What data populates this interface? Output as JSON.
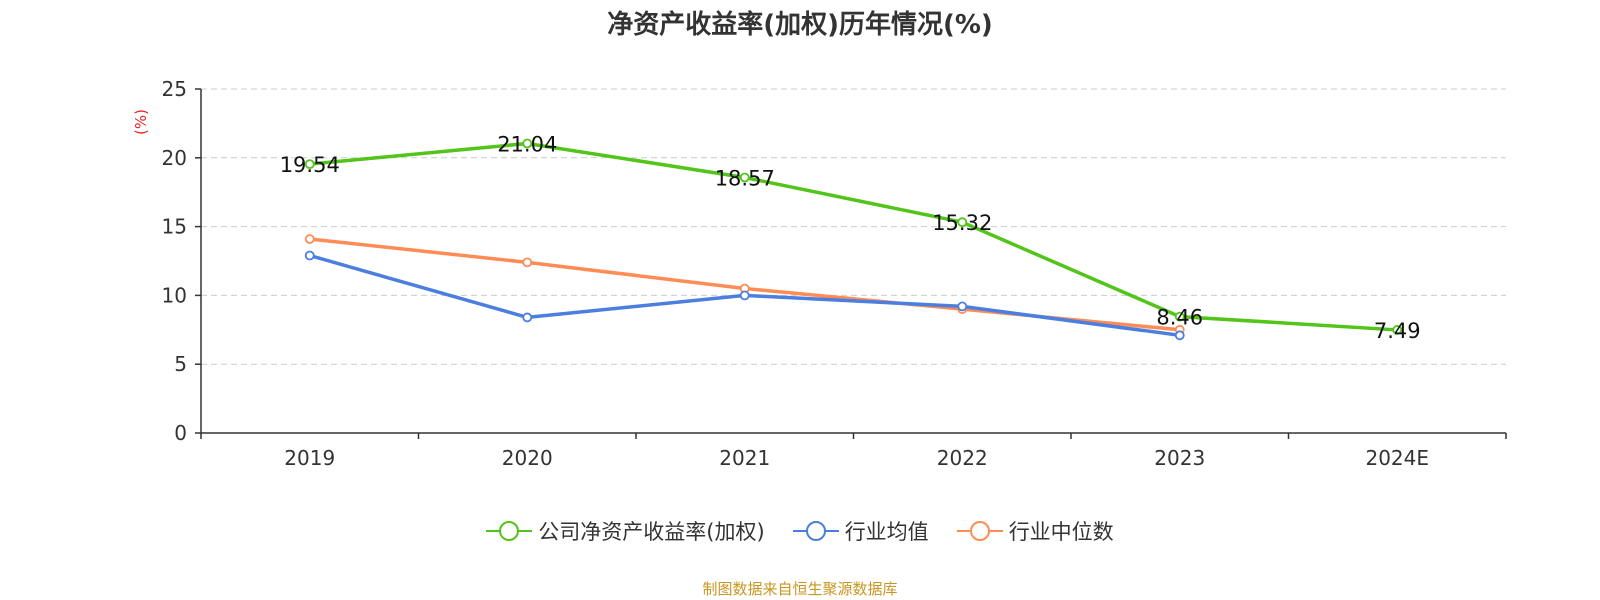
{
  "chart_data": {
    "type": "line",
    "title": "净资产收益率(加权)历年情况(%)",
    "ylabel": "(%)",
    "xlabel": "",
    "categories": [
      "2019",
      "2020",
      "2021",
      "2022",
      "2023",
      "2024E"
    ],
    "ylim": [
      0,
      25
    ],
    "yticks": [
      0,
      5,
      10,
      15,
      20,
      25
    ],
    "grid": true,
    "legend_position": "bottom",
    "series": [
      {
        "name": "公司净资产收益率(加权)",
        "color": "#52c41a",
        "values": [
          19.54,
          21.04,
          18.57,
          15.32,
          8.46,
          7.49
        ],
        "data_labels": [
          "19.54",
          "21.04",
          "18.57",
          "15.32",
          "8.46",
          "7.49"
        ]
      },
      {
        "name": "行业均值",
        "color": "#4a7fe0",
        "values": [
          12.9,
          8.4,
          10.0,
          9.2,
          7.1,
          null
        ]
      },
      {
        "name": "行业中位数",
        "color": "#ff8c55",
        "values": [
          14.1,
          12.4,
          10.5,
          9.0,
          7.5,
          null
        ]
      }
    ]
  },
  "source_note": "制图数据来自恒生聚源数据库"
}
